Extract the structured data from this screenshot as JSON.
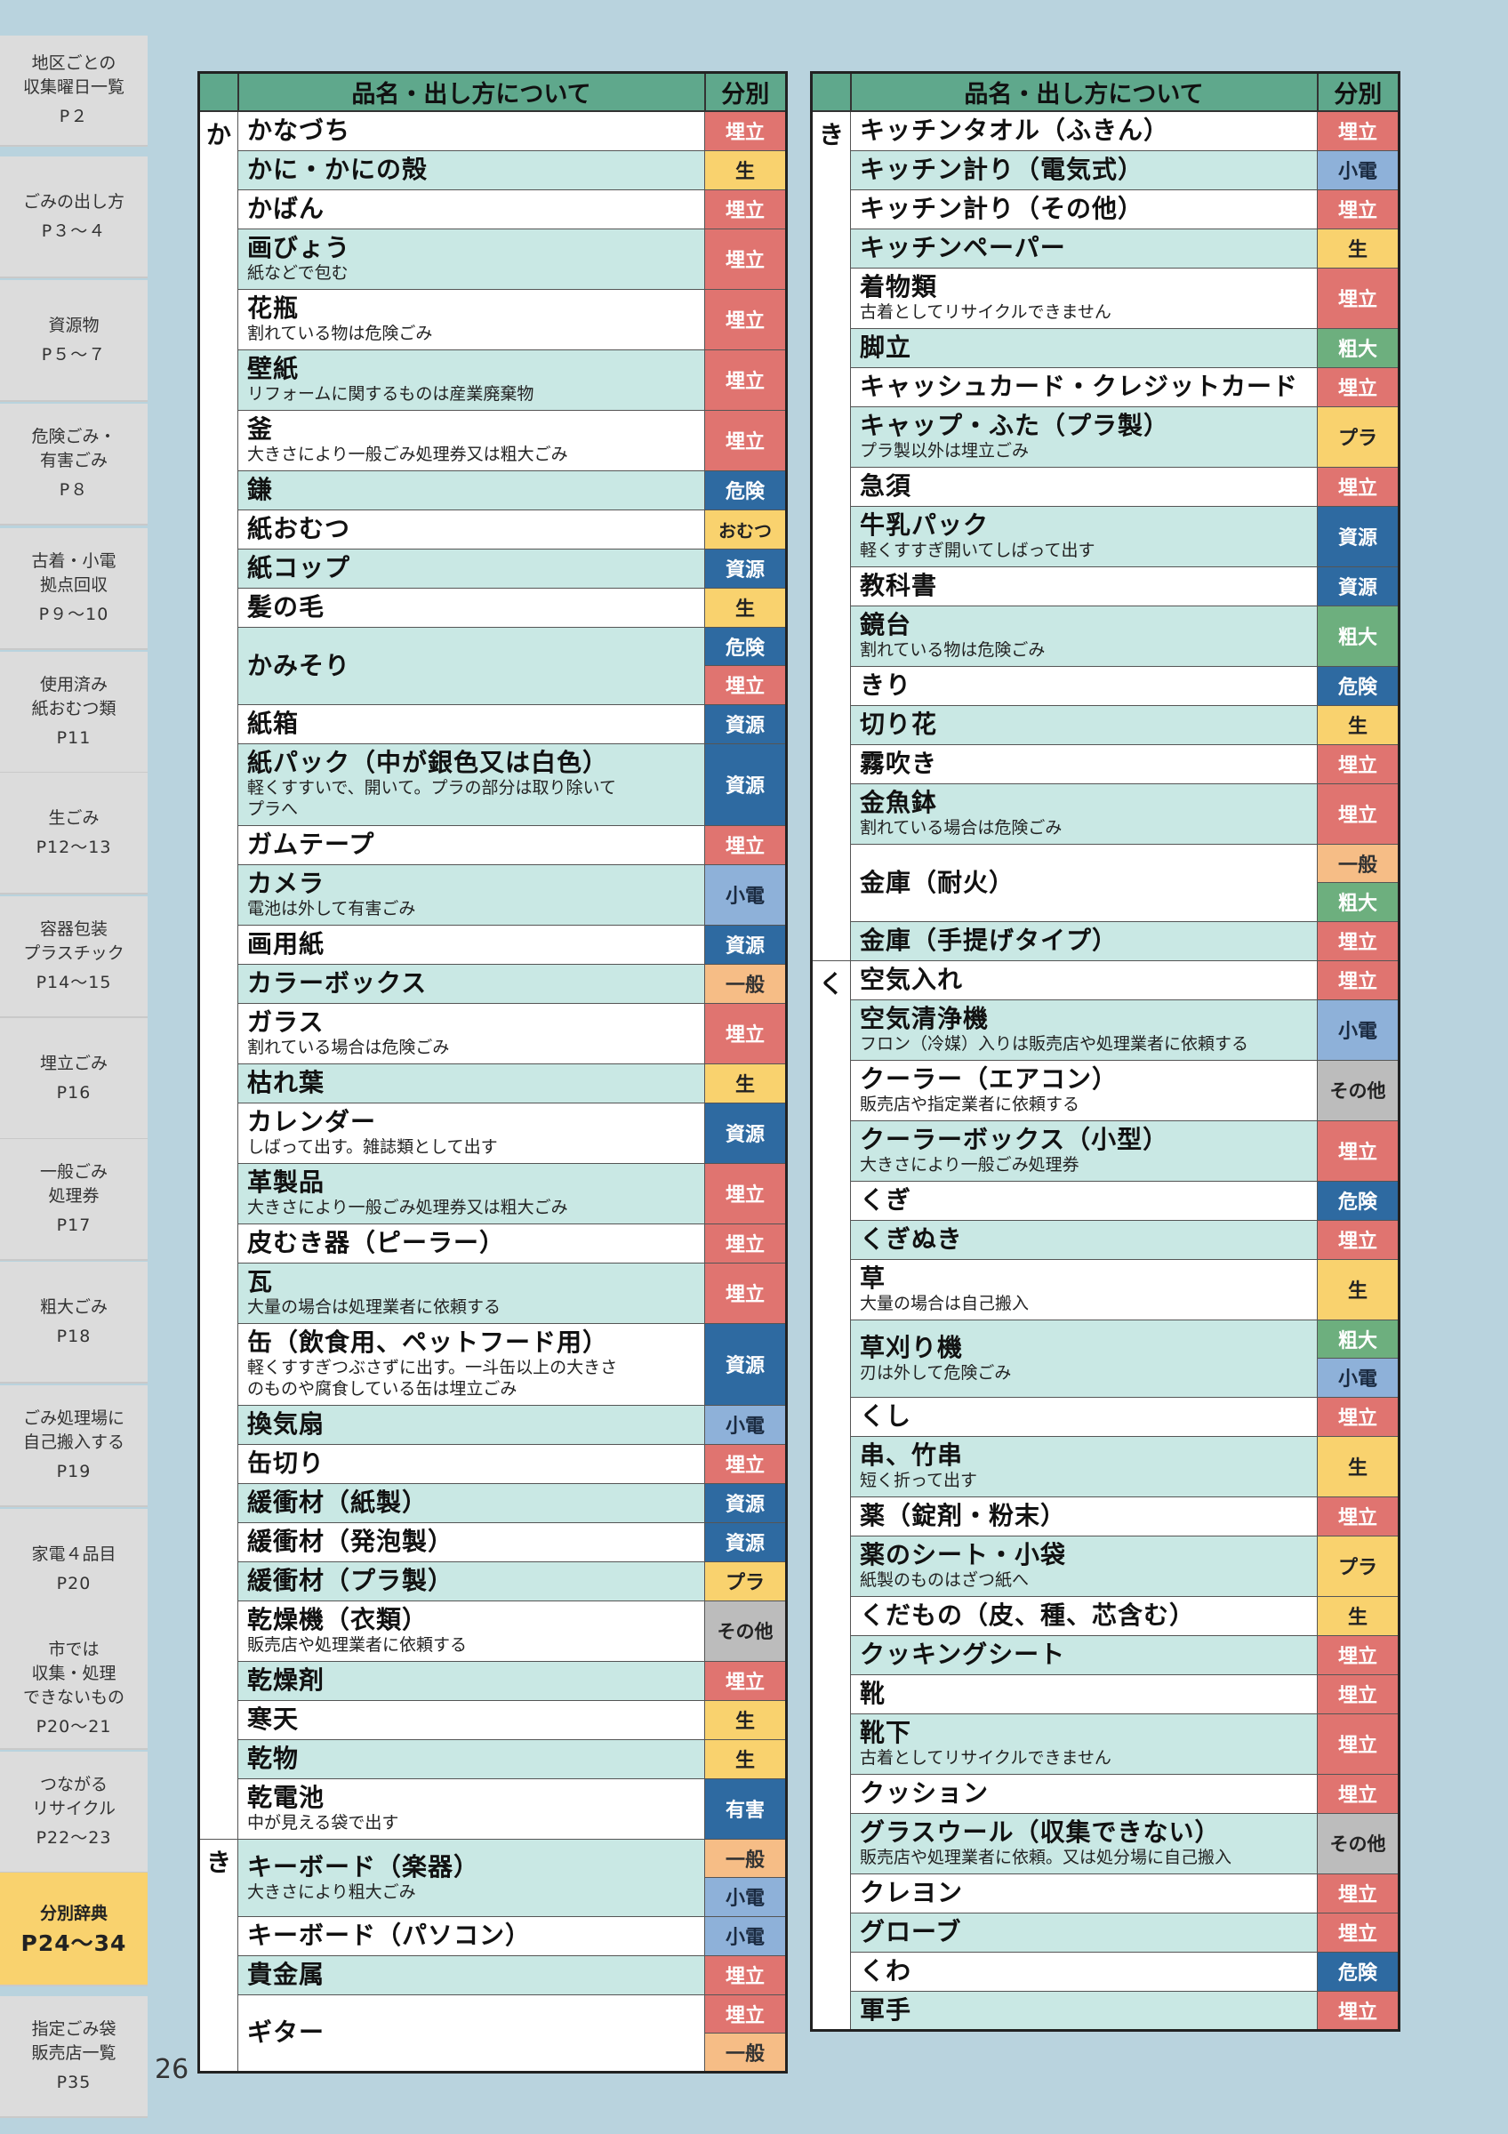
{
  "sidebar": {
    "tabs": [
      {
        "label": "地区ごとの\n収集曜日一覧",
        "page": "P２"
      },
      {
        "label": "ごみの出し方",
        "page": "P３～４"
      },
      {
        "label": "資源物",
        "page": "P５～７"
      },
      {
        "label": "危険ごみ・\n有害ごみ",
        "page": "P８"
      },
      {
        "label": "古着・小電\n拠点回収",
        "page": "P９～10"
      },
      {
        "label": "使用済み\n紙おむつ類",
        "page": "P11"
      },
      {
        "label": "生ごみ",
        "page": "P12～13"
      },
      {
        "label": "容器包装\nプラスチック",
        "page": "P14～15"
      },
      {
        "label": "埋立ごみ",
        "page": "P16"
      },
      {
        "label": "一般ごみ\n処理券",
        "page": "P17"
      },
      {
        "label": "粗大ごみ",
        "page": "P18"
      },
      {
        "label": "ごみ処理場に\n自己搬入する",
        "page": "P19"
      },
      {
        "label": "家電４品目",
        "page": "P20"
      },
      {
        "label": "市では\n収集・処理\nできないもの",
        "page": "P20～21"
      },
      {
        "label": "つながる\nリサイクル",
        "page": "P22～23"
      },
      {
        "label": "分別辞典",
        "page": "P24～34"
      },
      {
        "label": "指定ごみ袋\n販売店一覧",
        "page": "P35"
      }
    ]
  },
  "page_number": "26",
  "table_header": {
    "item": "品名・出し方について",
    "category": "分別"
  },
  "left_table": {
    "sections": [
      {
        "kana": "か",
        "rows": [
          {
            "name": "かなづち",
            "cats": [
              "埋立"
            ]
          },
          {
            "name": "かに・かにの殻",
            "cats": [
              "生"
            ]
          },
          {
            "name": "かばん",
            "cats": [
              "埋立"
            ]
          },
          {
            "name": "画びょう",
            "note": "紙などで包む",
            "cats": [
              "埋立"
            ]
          },
          {
            "name": "花瓶",
            "note": "割れている物は危険ごみ",
            "cats": [
              "埋立"
            ]
          },
          {
            "name": "壁紙",
            "note": "リフォームに関するものは産業廃棄物",
            "cats": [
              "埋立"
            ]
          },
          {
            "name": "釜",
            "note": "大きさにより一般ごみ処理券又は粗大ごみ",
            "cats": [
              "埋立"
            ]
          },
          {
            "name": "鎌",
            "cats": [
              "危険"
            ]
          },
          {
            "name": "紙おむつ",
            "cats": [
              "おむつ"
            ]
          },
          {
            "name": "紙コップ",
            "cats": [
              "資源"
            ]
          },
          {
            "name": "髪の毛",
            "cats": [
              "生"
            ]
          },
          {
            "name": "かみそり",
            "cats": [
              "危険",
              "埋立"
            ]
          },
          {
            "name": "紙箱",
            "cats": [
              "資源"
            ]
          },
          {
            "name": "紙パック（中が銀色又は白色）",
            "note": "軽くすすいで、開いて。プラの部分は取り除いて\nプラへ",
            "cats": [
              "資源"
            ]
          },
          {
            "name": "ガムテープ",
            "cats": [
              "埋立"
            ]
          },
          {
            "name": "カメラ",
            "note": "電池は外して有害ごみ",
            "cats": [
              "小電"
            ]
          },
          {
            "name": "画用紙",
            "cats": [
              "資源"
            ]
          },
          {
            "name": "カラーボックス",
            "cats": [
              "一般"
            ]
          },
          {
            "name": "ガラス",
            "note": "割れている場合は危険ごみ",
            "cats": [
              "埋立"
            ]
          },
          {
            "name": "枯れ葉",
            "cats": [
              "生"
            ]
          },
          {
            "name": "カレンダー",
            "note": "しばって出す。雑誌類として出す",
            "cats": [
              "資源"
            ]
          },
          {
            "name": "革製品",
            "note": "大きさにより一般ごみ処理券又は粗大ごみ",
            "cats": [
              "埋立"
            ]
          },
          {
            "name": "皮むき器（ピーラー）",
            "cats": [
              "埋立"
            ]
          },
          {
            "name": "瓦",
            "note": "大量の場合は処理業者に依頼する",
            "cats": [
              "埋立"
            ]
          },
          {
            "name": "缶（飲食用、ペットフード用）",
            "note": "軽くすすぎつぶさずに出す。一斗缶以上の大きさ\nのものや腐食している缶は埋立ごみ",
            "cats": [
              "資源"
            ]
          },
          {
            "name": "換気扇",
            "cats": [
              "小電"
            ]
          },
          {
            "name": "缶切り",
            "cats": [
              "埋立"
            ]
          },
          {
            "name": "緩衝材（紙製）",
            "cats": [
              "資源"
            ]
          },
          {
            "name": "緩衝材（発泡製）",
            "cats": [
              "資源"
            ]
          },
          {
            "name": "緩衝材（プラ製）",
            "cats": [
              "プラ"
            ]
          },
          {
            "name": "乾燥機（衣類）",
            "note": "販売店や処理業者に依頼する",
            "cats": [
              "その他"
            ]
          },
          {
            "name": "乾燥剤",
            "cats": [
              "埋立"
            ]
          },
          {
            "name": "寒天",
            "cats": [
              "生"
            ]
          },
          {
            "name": "乾物",
            "cats": [
              "生"
            ]
          },
          {
            "name": "乾電池",
            "note": "中が見える袋で出す",
            "cats": [
              "有害"
            ]
          }
        ]
      },
      {
        "kana": "き",
        "rows": [
          {
            "name": "キーボード（楽器）",
            "note": "大きさにより粗大ごみ",
            "cats": [
              "一般",
              "小電"
            ]
          },
          {
            "name": "キーボード（パソコン）",
            "cats": [
              "小電"
            ]
          },
          {
            "name": "貴金属",
            "cats": [
              "埋立"
            ]
          },
          {
            "name": "ギター",
            "cats": [
              "埋立",
              "一般"
            ]
          }
        ]
      }
    ]
  },
  "right_table": {
    "sections": [
      {
        "kana": "き",
        "rows": [
          {
            "name": "キッチンタオル（ふきん）",
            "cats": [
              "埋立"
            ]
          },
          {
            "name": "キッチン計り（電気式）",
            "cats": [
              "小電"
            ]
          },
          {
            "name": "キッチン計り（その他）",
            "cats": [
              "埋立"
            ]
          },
          {
            "name": "キッチンペーパー",
            "cats": [
              "生"
            ]
          },
          {
            "name": "着物類",
            "note": "古着としてリサイクルできません",
            "cats": [
              "埋立"
            ]
          },
          {
            "name": "脚立",
            "cats": [
              "粗大"
            ]
          },
          {
            "name": "キャッシュカード・クレジットカード",
            "cats": [
              "埋立"
            ]
          },
          {
            "name": "キャップ・ふた（プラ製）",
            "note": "プラ製以外は埋立ごみ",
            "cats": [
              "プラ"
            ]
          },
          {
            "name": "急須",
            "cats": [
              "埋立"
            ]
          },
          {
            "name": "牛乳パック",
            "note": "軽くすすぎ開いてしばって出す",
            "cats": [
              "資源"
            ]
          },
          {
            "name": "教科書",
            "cats": [
              "資源"
            ]
          },
          {
            "name": "鏡台",
            "note": "割れている物は危険ごみ",
            "cats": [
              "粗大"
            ]
          },
          {
            "name": "きり",
            "cats": [
              "危険"
            ]
          },
          {
            "name": "切り花",
            "cats": [
              "生"
            ]
          },
          {
            "name": "霧吹き",
            "cats": [
              "埋立"
            ]
          },
          {
            "name": "金魚鉢",
            "note": "割れている場合は危険ごみ",
            "cats": [
              "埋立"
            ]
          },
          {
            "name": "金庫（耐火）",
            "cats": [
              "一般",
              "粗大"
            ]
          },
          {
            "name": "金庫（手提げタイプ）",
            "cats": [
              "埋立"
            ]
          }
        ]
      },
      {
        "kana": "く",
        "rows": [
          {
            "name": "空気入れ",
            "cats": [
              "埋立"
            ]
          },
          {
            "name": "空気清浄機",
            "note": "フロン（冷媒）入りは販売店や処理業者に依頼する",
            "cats": [
              "小電"
            ]
          },
          {
            "name": "クーラー（エアコン）",
            "note": "販売店や指定業者に依頼する",
            "cats": [
              "その他"
            ]
          },
          {
            "name": "クーラーボックス（小型）",
            "note": "大きさにより一般ごみ処理券",
            "cats": [
              "埋立"
            ]
          },
          {
            "name": "くぎ",
            "cats": [
              "危険"
            ]
          },
          {
            "name": "くぎぬき",
            "cats": [
              "埋立"
            ]
          },
          {
            "name": "草",
            "note": "大量の場合は自己搬入",
            "cats": [
              "生"
            ]
          },
          {
            "name": "草刈り機",
            "note": "刃は外して危険ごみ",
            "cats": [
              "粗大",
              "小電"
            ]
          },
          {
            "name": "くし",
            "cats": [
              "埋立"
            ]
          },
          {
            "name": "串、竹串",
            "note": "短く折って出す",
            "cats": [
              "生"
            ]
          },
          {
            "name": "薬（錠剤・粉末）",
            "cats": [
              "埋立"
            ]
          },
          {
            "name": "薬のシート・小袋",
            "note": "紙製のものはざつ紙へ",
            "cats": [
              "プラ"
            ]
          },
          {
            "name": "くだもの（皮、種、芯含む）",
            "cats": [
              "生"
            ]
          },
          {
            "name": "クッキングシート",
            "cats": [
              "埋立"
            ]
          },
          {
            "name": "靴",
            "cats": [
              "埋立"
            ]
          },
          {
            "name": "靴下",
            "note": "古着としてリサイクルできません",
            "cats": [
              "埋立"
            ]
          },
          {
            "name": "クッション",
            "cats": [
              "埋立"
            ]
          },
          {
            "name": "グラスウール（収集できない）",
            "note": "販売店や処理業者に依頼。又は処分場に自己搬入",
            "cats": [
              "その他"
            ]
          },
          {
            "name": "クレヨン",
            "cats": [
              "埋立"
            ]
          },
          {
            "name": "グローブ",
            "cats": [
              "埋立"
            ]
          },
          {
            "name": "くわ",
            "cats": [
              "危険"
            ]
          },
          {
            "name": "軍手",
            "cats": [
              "埋立"
            ]
          }
        ]
      }
    ]
  },
  "category_colors": {
    "埋立": "#e07470",
    "生": "#f9d26e",
    "資源": "#2e6aa1",
    "危険": "#2e6aa1",
    "有害": "#2e6aa1",
    "小電": "#8eb1d9",
    "おむつ": "#f9d26e",
    "一般": "#f6bd86",
    "プラ": "#f9d26e",
    "粗大": "#6daf7e",
    "その他": "#bcbcbc"
  }
}
